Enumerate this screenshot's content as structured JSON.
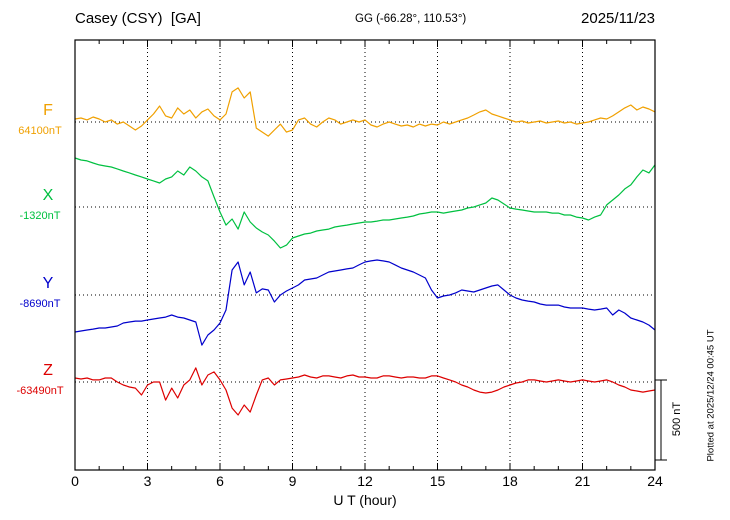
{
  "header": {
    "station": "Casey (CSY)  [GA]",
    "coordinates": "GG (-66.28°, 110.53°)",
    "date": "2025/11/23"
  },
  "axis": {
    "xlabel": "U T (hour)",
    "tick_labels": [
      "0",
      "3",
      "6",
      "9",
      "12",
      "15",
      "18",
      "21",
      "24"
    ],
    "xmin_hour": 0,
    "xmax_hour": 24,
    "tick_step_hours": 3
  },
  "scale_bar": {
    "label": "500 nT",
    "nT": 500
  },
  "footnote": {
    "text": "Plotted at 2025/12/24 00:45 UT"
  },
  "chart_data": {
    "type": "line",
    "title": "Casey (CSY) [GA] magnetogram, 2025/11/23",
    "x_unit": "UT hour",
    "x_start": 0,
    "x_step": 0.25,
    "x_end": 24,
    "grid": "dotted vertical gridlines every 3 h; dotted horizontal baseline per component",
    "legend_position": "left margin",
    "series": [
      {
        "name": "F",
        "color": "#f0a000",
        "baseline_label": "64100nT",
        "baseline_nT": 64100,
        "values": [
          64119,
          64125,
          64113,
          64131,
          64119,
          64100,
          64113,
          64087,
          64100,
          64075,
          64050,
          64075,
          64113,
          64150,
          64200,
          64138,
          64125,
          64188,
          64150,
          64175,
          64125,
          64163,
          64181,
          64138,
          64113,
          64150,
          64288,
          64313,
          64250,
          64288,
          64062,
          64037,
          64012,
          64050,
          64087,
          64037,
          64050,
          64113,
          64125,
          64087,
          64069,
          64100,
          64125,
          64113,
          64087,
          64100,
          64113,
          64100,
          64113,
          64081,
          64069,
          64087,
          64100,
          64087,
          64075,
          64081,
          64069,
          64087,
          64075,
          64087,
          64081,
          64100,
          64087,
          64100,
          64113,
          64125,
          64144,
          64163,
          64175,
          64150,
          64138,
          64125,
          64113,
          64100,
          64106,
          64094,
          64100,
          64106,
          64094,
          64100,
          64106,
          64094,
          64100,
          64087,
          64094,
          64100,
          64113,
          64125,
          64119,
          64138,
          64163,
          64188,
          64206,
          64175,
          64194,
          64181,
          64163
        ]
      },
      {
        "name": "X",
        "color": "#00c040",
        "baseline_label": "-1320nT",
        "baseline_nT": -1320,
        "values": [
          -1014,
          -1026,
          -1032,
          -1045,
          -1057,
          -1064,
          -1070,
          -1082,
          -1095,
          -1107,
          -1120,
          -1132,
          -1145,
          -1157,
          -1170,
          -1145,
          -1132,
          -1095,
          -1120,
          -1070,
          -1095,
          -1132,
          -1157,
          -1257,
          -1351,
          -1433,
          -1395,
          -1458,
          -1351,
          -1414,
          -1451,
          -1476,
          -1495,
          -1533,
          -1576,
          -1558,
          -1514,
          -1501,
          -1489,
          -1483,
          -1470,
          -1464,
          -1458,
          -1445,
          -1439,
          -1433,
          -1426,
          -1420,
          -1414,
          -1414,
          -1408,
          -1401,
          -1401,
          -1395,
          -1389,
          -1383,
          -1376,
          -1364,
          -1358,
          -1351,
          -1351,
          -1358,
          -1351,
          -1345,
          -1339,
          -1326,
          -1320,
          -1307,
          -1295,
          -1264,
          -1276,
          -1301,
          -1326,
          -1333,
          -1339,
          -1345,
          -1351,
          -1351,
          -1351,
          -1358,
          -1358,
          -1370,
          -1370,
          -1383,
          -1389,
          -1401,
          -1383,
          -1370,
          -1307,
          -1276,
          -1245,
          -1207,
          -1182,
          -1132,
          -1089,
          -1107,
          -1057
        ]
      },
      {
        "name": "Y",
        "color": "#0000cc",
        "baseline_label": "-8690nT",
        "baseline_nT": -8690,
        "values": [
          -8921,
          -8915,
          -8909,
          -8903,
          -8896,
          -8896,
          -8890,
          -8884,
          -8865,
          -8859,
          -8853,
          -8853,
          -8846,
          -8840,
          -8834,
          -8828,
          -8815,
          -8828,
          -8834,
          -8846,
          -8859,
          -9003,
          -8940,
          -8909,
          -8865,
          -8784,
          -8534,
          -8484,
          -8627,
          -8546,
          -8677,
          -8652,
          -8659,
          -8734,
          -8690,
          -8665,
          -8646,
          -8627,
          -8596,
          -8590,
          -8584,
          -8565,
          -8546,
          -8540,
          -8534,
          -8527,
          -8521,
          -8502,
          -8484,
          -8477,
          -8471,
          -8477,
          -8484,
          -8502,
          -8521,
          -8534,
          -8546,
          -8565,
          -8584,
          -8659,
          -8709,
          -8696,
          -8690,
          -8677,
          -8659,
          -8665,
          -8671,
          -8659,
          -8646,
          -8634,
          -8627,
          -8659,
          -8690,
          -8709,
          -8721,
          -8728,
          -8734,
          -8746,
          -8753,
          -8753,
          -8753,
          -8765,
          -8771,
          -8771,
          -8771,
          -8778,
          -8784,
          -8778,
          -8771,
          -8815,
          -8784,
          -8803,
          -8834,
          -8846,
          -8859,
          -8878,
          -8909
        ]
      },
      {
        "name": "Z",
        "color": "#dd0000",
        "baseline_label": "-63490nT",
        "baseline_nT": -63490,
        "values": [
          -63465,
          -63471,
          -63465,
          -63477,
          -63477,
          -63465,
          -63465,
          -63490,
          -63509,
          -63521,
          -63528,
          -63571,
          -63509,
          -63490,
          -63490,
          -63603,
          -63528,
          -63590,
          -63509,
          -63477,
          -63402,
          -63509,
          -63446,
          -63427,
          -63477,
          -63540,
          -63653,
          -63696,
          -63634,
          -63678,
          -63571,
          -63477,
          -63465,
          -63509,
          -63477,
          -63471,
          -63465,
          -63459,
          -63446,
          -63459,
          -63465,
          -63452,
          -63452,
          -63459,
          -63465,
          -63452,
          -63446,
          -63459,
          -63459,
          -63465,
          -63465,
          -63452,
          -63452,
          -63459,
          -63465,
          -63459,
          -63459,
          -63465,
          -63465,
          -63452,
          -63452,
          -63465,
          -63477,
          -63490,
          -63509,
          -63521,
          -63540,
          -63553,
          -63559,
          -63553,
          -63540,
          -63521,
          -63509,
          -63496,
          -63490,
          -63477,
          -63477,
          -63484,
          -63490,
          -63484,
          -63477,
          -63484,
          -63490,
          -63484,
          -63477,
          -63484,
          -63490,
          -63484,
          -63477,
          -63490,
          -63509,
          -63521,
          -63540,
          -63546,
          -63553,
          -63546,
          -63540
        ]
      }
    ]
  }
}
